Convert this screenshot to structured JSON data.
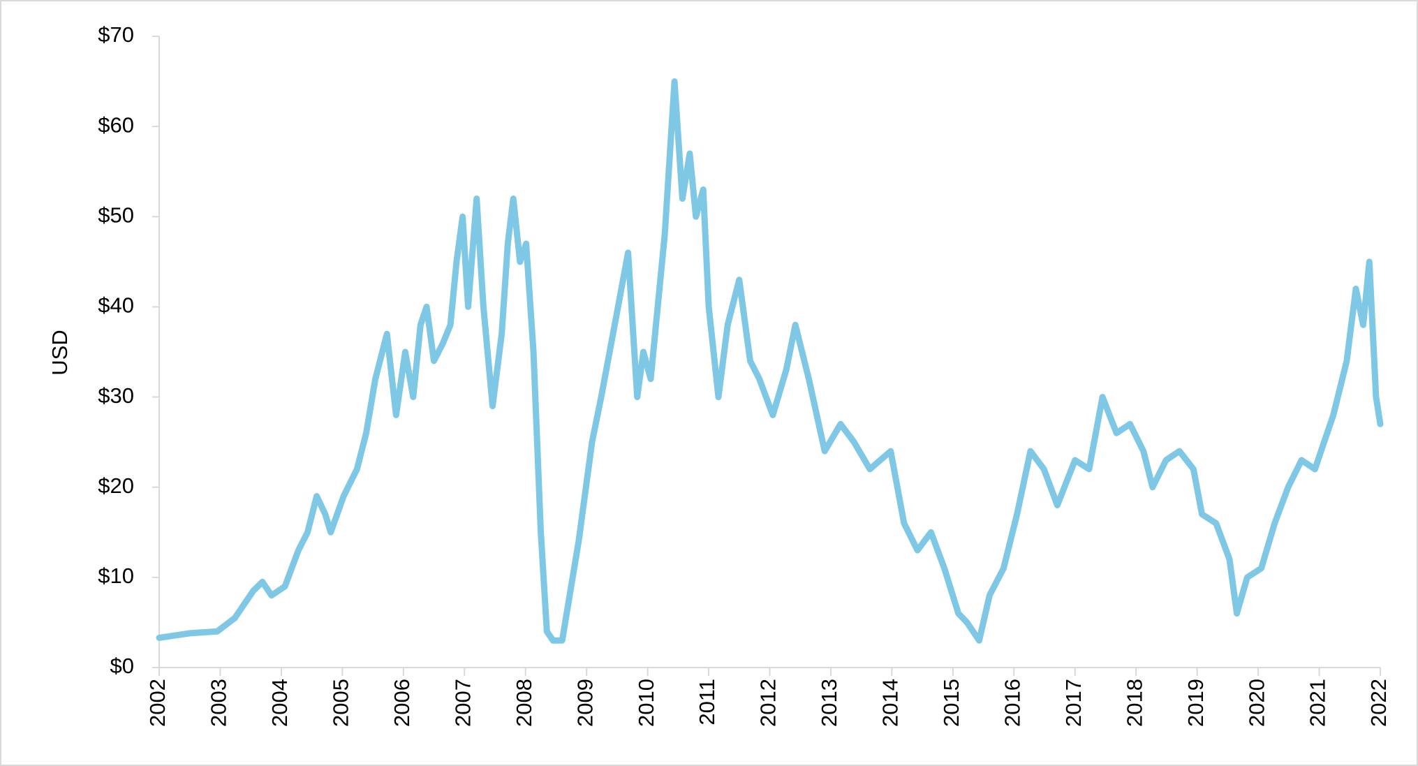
{
  "chart_data": {
    "type": "line",
    "y_label": "USD",
    "color": "#7ec8e6",
    "grid": false,
    "x": [
      2002.0,
      2002.5,
      2002.95,
      2003.24,
      2003.54,
      2003.69,
      2003.84,
      2004.06,
      2004.28,
      2004.43,
      2004.58,
      2004.72,
      2004.81,
      2005.02,
      2005.24,
      2005.39,
      2005.54,
      2005.73,
      2005.88,
      2006.03,
      2006.16,
      2006.28,
      2006.38,
      2006.5,
      2006.65,
      2006.77,
      2006.87,
      2006.97,
      2007.06,
      2007.2,
      2007.31,
      2007.46,
      2007.61,
      2007.71,
      2007.8,
      2007.91,
      2008.01,
      2008.13,
      2008.25,
      2008.35,
      2008.45,
      2008.6,
      2008.87,
      2009.09,
      2009.24,
      2009.46,
      2009.68,
      2009.83,
      2009.93,
      2010.05,
      2010.28,
      2010.44,
      2010.57,
      2010.69,
      2010.79,
      2010.91,
      2011.0,
      2011.16,
      2011.31,
      2011.5,
      2011.68,
      2011.83,
      2012.05,
      2012.27,
      2012.42,
      2012.64,
      2012.9,
      2013.16,
      2013.38,
      2013.64,
      2013.98,
      2014.2,
      2014.42,
      2014.64,
      2014.86,
      2015.09,
      2015.23,
      2015.43,
      2015.6,
      2015.83,
      2016.05,
      2016.27,
      2016.49,
      2016.71,
      2017.0,
      2017.23,
      2017.45,
      2017.68,
      2017.9,
      2018.12,
      2018.27,
      2018.49,
      2018.71,
      2018.94,
      2019.08,
      2019.31,
      2019.53,
      2019.65,
      2019.82,
      2020.05,
      2020.27,
      2020.49,
      2020.71,
      2020.93,
      2021.08,
      2021.23,
      2021.45,
      2021.6,
      2021.72,
      2021.82,
      2021.93,
      2022.0
    ],
    "values": [
      3.3,
      3.8,
      4.0,
      5.5,
      8.5,
      9.5,
      8.0,
      9.0,
      13.0,
      15.0,
      19.0,
      17.0,
      15.0,
      19.0,
      22.0,
      26.0,
      32.0,
      37.0,
      28.0,
      35.0,
      30.0,
      38.0,
      40.0,
      34.0,
      36.0,
      38.0,
      45.0,
      50.0,
      40.0,
      52.0,
      40.0,
      29.0,
      37.0,
      47.0,
      52.0,
      45.0,
      47.0,
      35.0,
      15.0,
      4.0,
      3.0,
      3.0,
      14.0,
      25.0,
      30.0,
      38.0,
      46.0,
      30.0,
      35.0,
      32.0,
      48.0,
      65.0,
      52.0,
      57.0,
      50.0,
      53.0,
      40.0,
      30.0,
      38.0,
      43.0,
      34.0,
      32.0,
      28.0,
      33.0,
      38.0,
      32.0,
      24.0,
      27.0,
      25.0,
      22.0,
      24.0,
      16.0,
      13.0,
      15.0,
      11.0,
      6.0,
      5.0,
      3.0,
      8.0,
      11.0,
      17.0,
      24.0,
      22.0,
      18.0,
      23.0,
      22.0,
      30.0,
      26.0,
      27.0,
      24.0,
      20.0,
      23.0,
      24.0,
      22.0,
      17.0,
      16.0,
      12.0,
      6.0,
      10.0,
      11.0,
      16.0,
      20.0,
      23.0,
      22.0,
      25.0,
      28.0,
      34.0,
      42.0,
      38.0,
      45.0,
      30.0,
      27.0
    ],
    "xlim": [
      2002,
      2022
    ],
    "xticks": [
      2002,
      2003,
      2004,
      2005,
      2006,
      2007,
      2008,
      2009,
      2010,
      2011,
      2012,
      2013,
      2014,
      2015,
      2016,
      2017,
      2018,
      2019,
      2020,
      2021,
      2022
    ],
    "ylim": [
      0,
      70
    ],
    "yticks": [
      {
        "value": 0,
        "label": "$0"
      },
      {
        "value": 10,
        "label": "$10"
      },
      {
        "value": 20,
        "label": "$20"
      },
      {
        "value": 30,
        "label": "$30"
      },
      {
        "value": 40,
        "label": "$40"
      },
      {
        "value": 50,
        "label": "$50"
      },
      {
        "value": 60,
        "label": "$60"
      },
      {
        "value": 70,
        "label": "$70"
      }
    ]
  }
}
